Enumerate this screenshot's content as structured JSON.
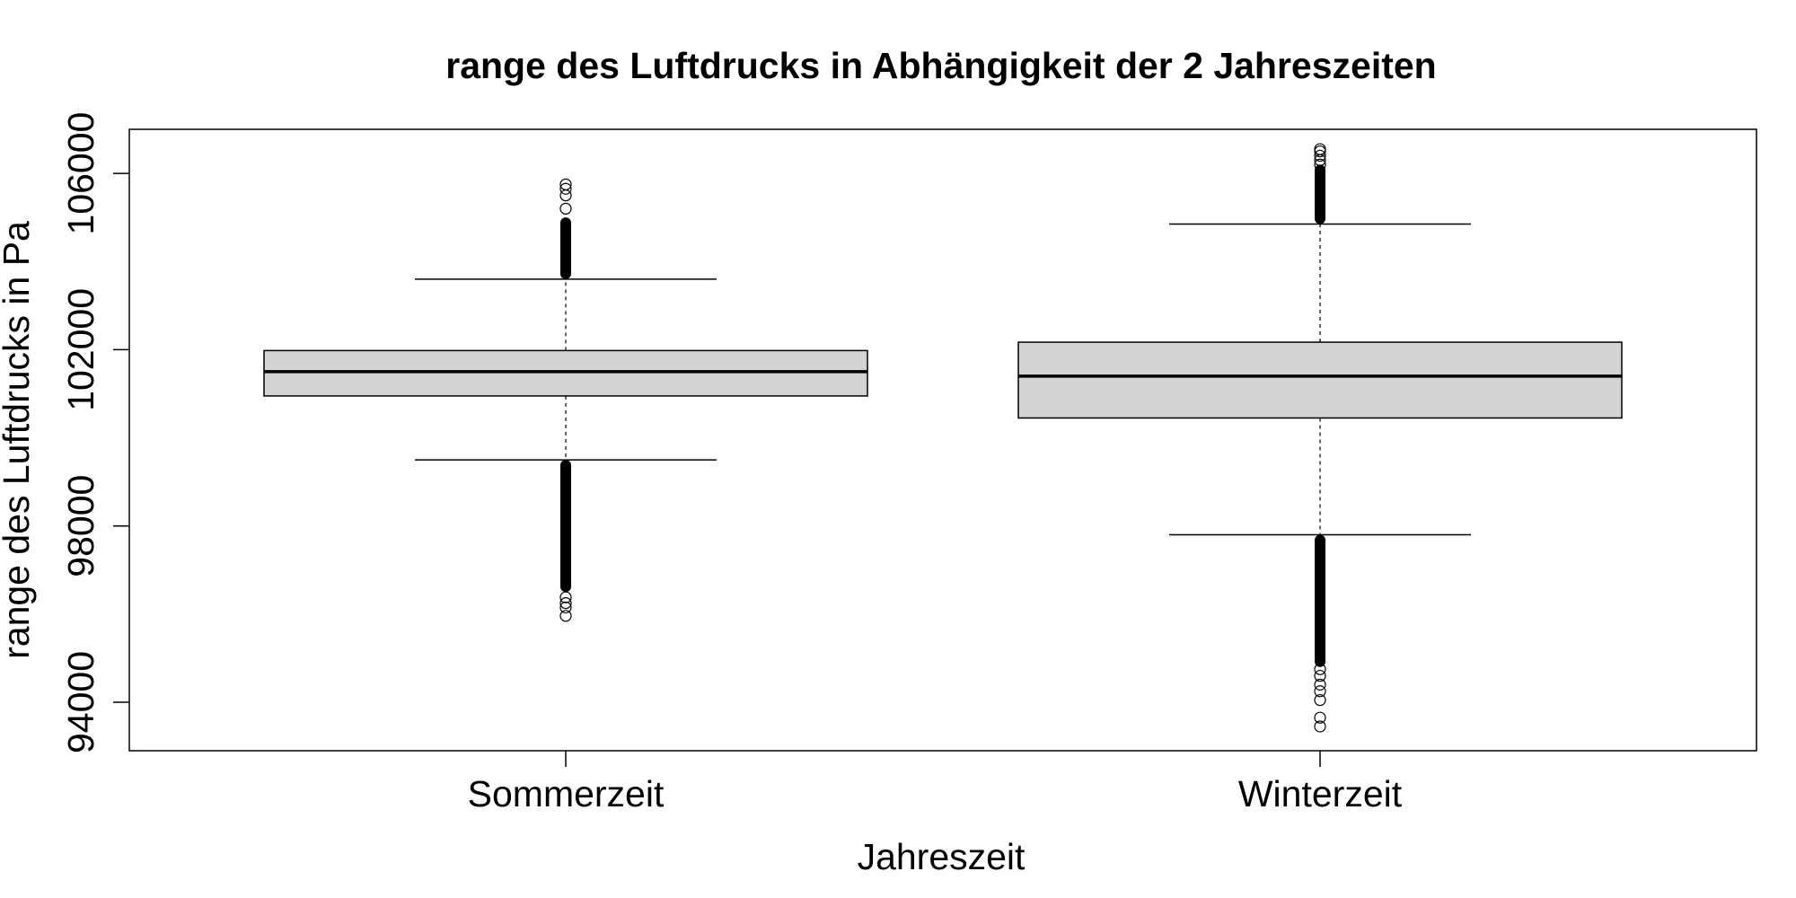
{
  "chart_data": {
    "type": "boxplot",
    "title": "range des Luftdrucks in Abhängigkeit der 2 Jahreszeiten",
    "xlabel": "Jahreszeit",
    "ylabel": "range des Luftdrucks in Pa",
    "categories": [
      "Sommerzeit",
      "Winterzeit"
    ],
    "yticks": [
      94000,
      98000,
      102000,
      106000
    ],
    "ylim": [
      92900,
      107000
    ],
    "box_color": "#d3d3d3",
    "series": [
      {
        "category": "Sommerzeit",
        "lower_whisker": 99500,
        "q1": 100950,
        "median": 101500,
        "q3": 101980,
        "upper_whisker": 103600,
        "outlier_dense_ranges": [
          [
            96500,
            99500
          ],
          [
            103600,
            105000
          ]
        ],
        "outliers": [
          95960,
          96150,
          96250,
          96380,
          105200,
          105500,
          105650,
          105750
        ]
      },
      {
        "category": "Winterzeit",
        "lower_whisker": 97800,
        "q1": 100450,
        "median": 101400,
        "q3": 102170,
        "upper_whisker": 104850,
        "outlier_dense_ranges": [
          [
            94800,
            97800
          ],
          [
            104850,
            106200
          ]
        ],
        "outliers": [
          93450,
          93650,
          94050,
          94250,
          94400,
          94600,
          94750,
          106200,
          106300,
          106400,
          106500,
          106550
        ]
      }
    ]
  }
}
